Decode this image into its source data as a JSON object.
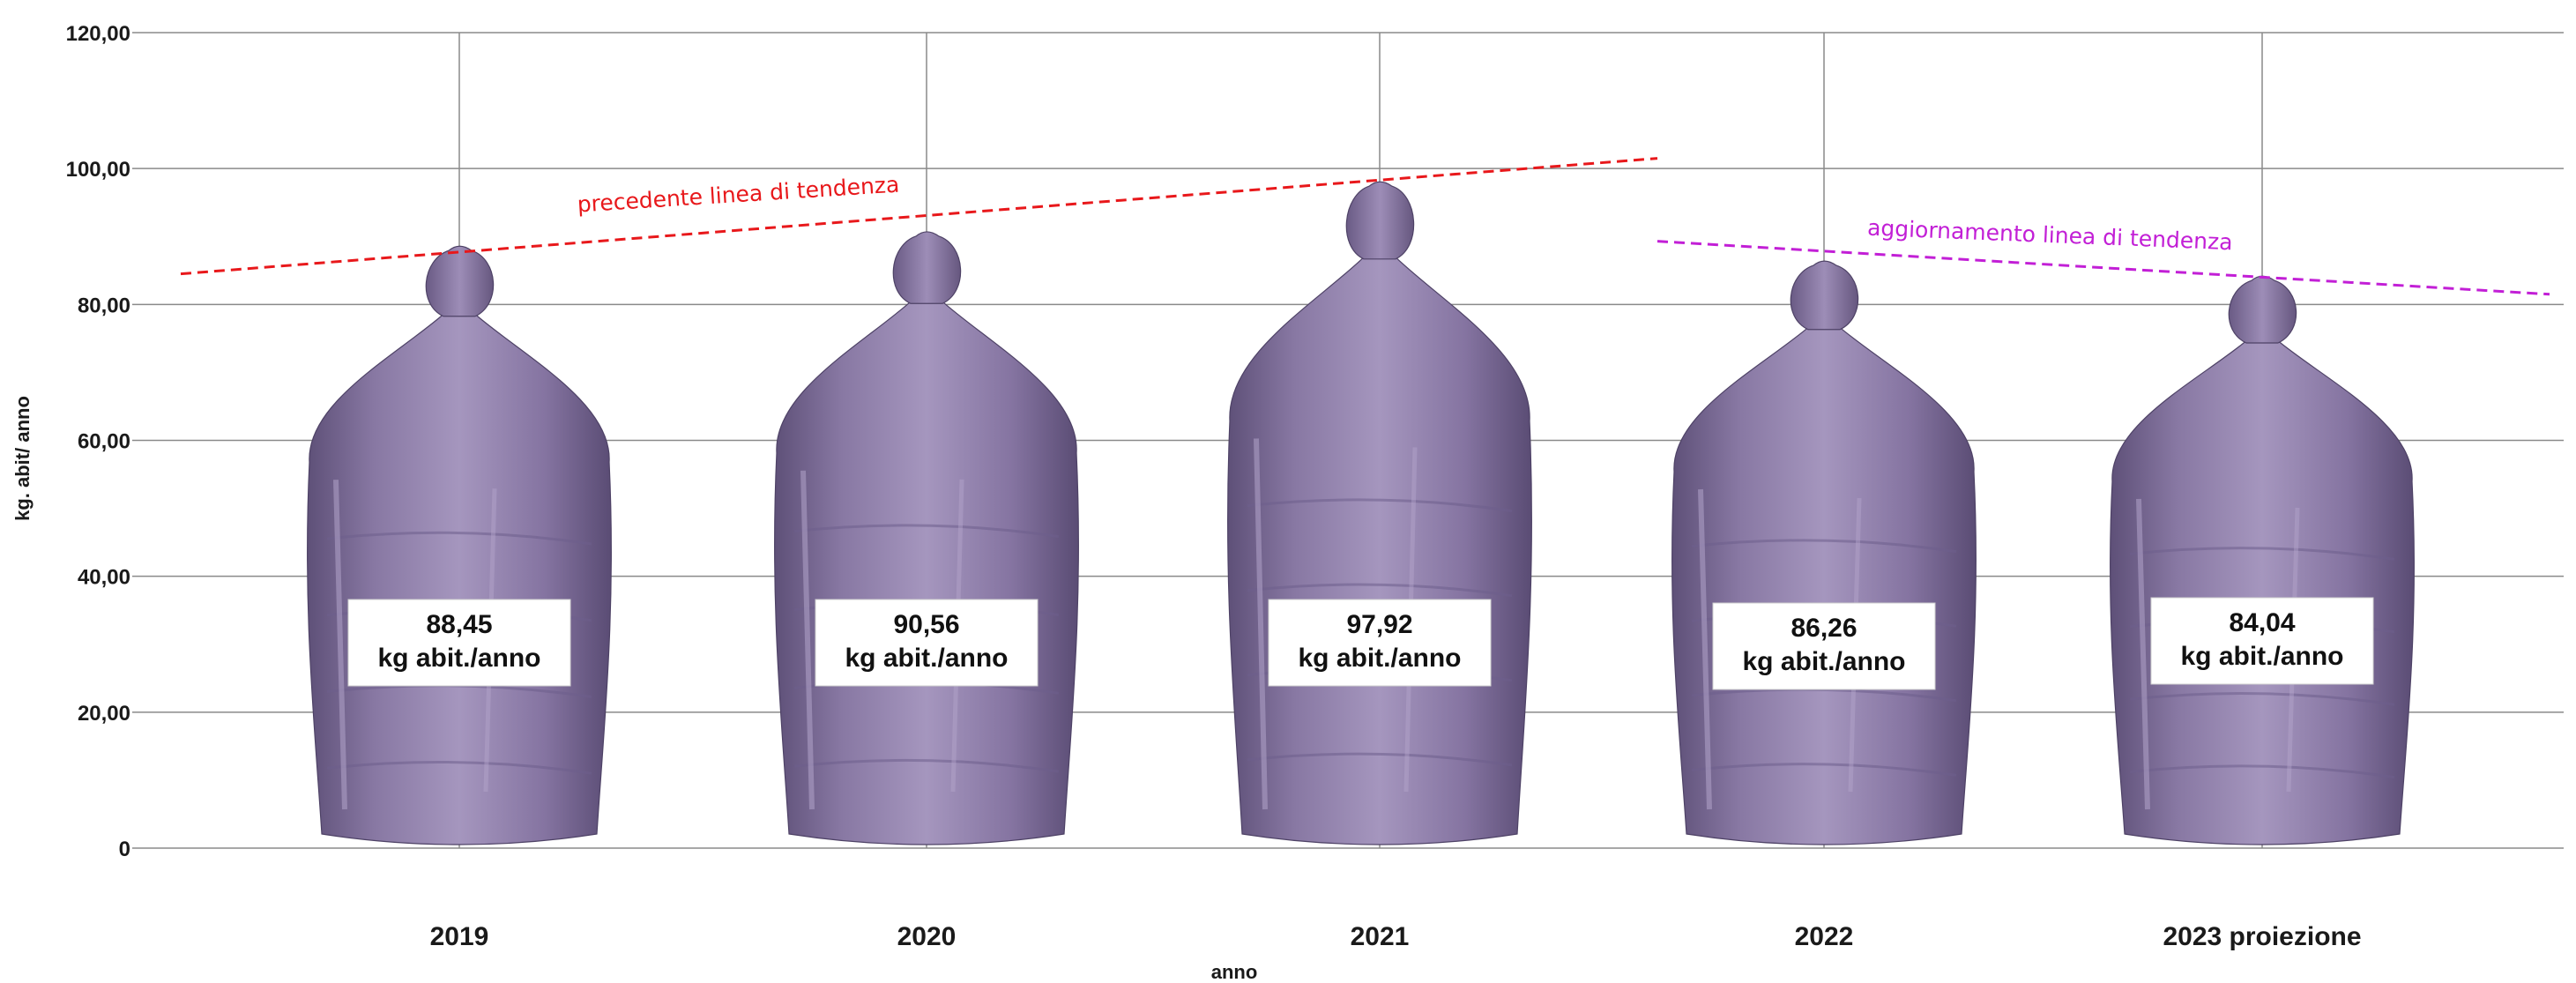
{
  "chart_data": {
    "type": "bar",
    "title": "",
    "xlabel": "anno",
    "ylabel": "kg. abit/ anno",
    "ylim": [
      0,
      120
    ],
    "yticks": [
      "0",
      "20,00",
      "40,00",
      "60,00",
      "80,00",
      "100,00",
      "120,00"
    ],
    "yticks_values": [
      0,
      20,
      40,
      60,
      80,
      100,
      120
    ],
    "grid": true,
    "categories": [
      "2019",
      "2020",
      "2021",
      "2022",
      "2023 proiezione"
    ],
    "values": [
      88.45,
      90.56,
      97.92,
      86.26,
      84.04
    ],
    "value_labels": [
      "88,45",
      "90,56",
      "97,92",
      "86,26",
      "84,04"
    ],
    "unit_label": "kg abit./anno",
    "bar_style": "garbage-bag pictograph",
    "bar_color": "#8b7aa6",
    "annotations": [
      {
        "text": "precedente linea di tendenza",
        "color": "#e8181b",
        "style": "dashed",
        "from": {
          "category": "2019",
          "y": 84.5
        },
        "to": {
          "category": "2022",
          "y": 101.5
        }
      },
      {
        "text": "aggiornamento linea di tendenza",
        "color": "#c21fd6",
        "style": "dashed",
        "from": {
          "category": "2022",
          "y": 89.3
        },
        "to": {
          "category": "2023 proiezione",
          "y": 81.5
        }
      }
    ]
  }
}
